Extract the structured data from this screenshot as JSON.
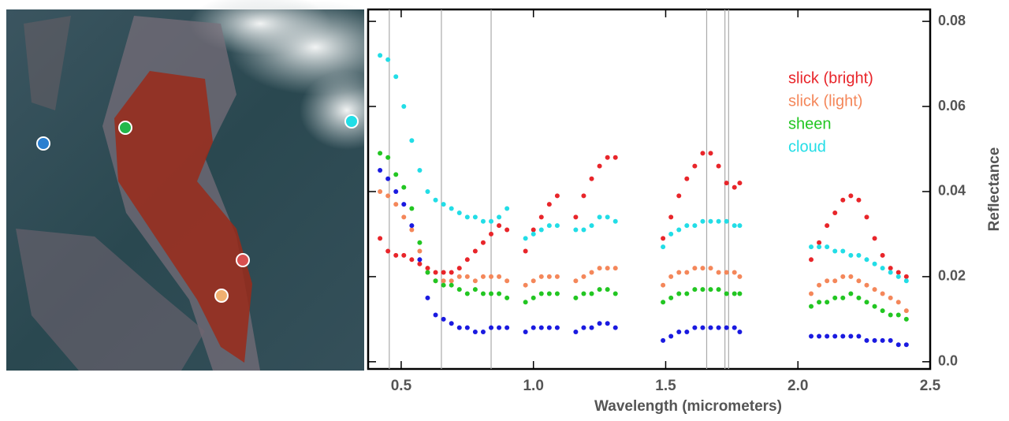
{
  "chart_data": {
    "type": "scatter",
    "xlabel": "Wavelength (micrometers)",
    "ylabel": "Reflectance",
    "xlim": [
      0.375,
      2.5
    ],
    "ylim": [
      -0.0017,
      0.0828
    ],
    "xticks": [
      0.5,
      {
        "value": 1,
        "label": "1.0"
      },
      1.5,
      {
        "value": 2,
        "label": "2.0"
      },
      2.5
    ],
    "yticks": [
      {
        "value": 0,
        "label": "0.0"
      },
      0.02,
      0.04,
      0.06,
      0.08
    ],
    "vlines": [
      0.455,
      0.652,
      0.84,
      1.655,
      1.724,
      1.738
    ],
    "legend": "upper right",
    "x": [
      0.42,
      0.45,
      0.48,
      0.51,
      0.54,
      0.57,
      0.6,
      0.63,
      0.66,
      0.69,
      0.72,
      0.75,
      0.78,
      0.81,
      0.84,
      0.87,
      0.9,
      0.97,
      1.0,
      1.03,
      1.06,
      1.09,
      1.16,
      1.19,
      1.22,
      1.25,
      1.28,
      1.31,
      1.49,
      1.52,
      1.55,
      1.58,
      1.61,
      1.64,
      1.67,
      1.7,
      1.73,
      1.76,
      1.78,
      2.05,
      2.08,
      2.11,
      2.14,
      2.17,
      2.2,
      2.23,
      2.26,
      2.29,
      2.32,
      2.35,
      2.38,
      2.41
    ],
    "series": [
      {
        "name": "slick (bright)",
        "color": "#e8252a",
        "values": [
          0.029,
          0.026,
          0.025,
          0.025,
          0.024,
          0.023,
          0.022,
          0.021,
          0.021,
          0.021,
          0.022,
          0.024,
          0.026,
          0.028,
          0.03,
          0.032,
          0.031,
          0.026,
          0.031,
          0.034,
          0.037,
          0.039,
          0.034,
          0.039,
          0.043,
          0.046,
          0.048,
          0.048,
          0.029,
          0.034,
          0.039,
          0.043,
          0.046,
          0.049,
          0.049,
          0.046,
          0.042,
          0.041,
          0.042,
          0.024,
          0.028,
          0.032,
          0.035,
          0.038,
          0.039,
          0.038,
          0.034,
          0.029,
          0.025,
          0.022,
          0.021,
          0.02
        ]
      },
      {
        "name": "slick (light)",
        "color": "#f4875a",
        "values": [
          0.04,
          0.039,
          0.037,
          0.034,
          0.031,
          0.026,
          0.021,
          0.019,
          0.019,
          0.019,
          0.02,
          0.02,
          0.019,
          0.02,
          0.02,
          0.02,
          0.019,
          0.018,
          0.019,
          0.02,
          0.02,
          0.02,
          0.019,
          0.02,
          0.021,
          0.022,
          0.022,
          0.022,
          0.018,
          0.02,
          0.021,
          0.021,
          0.022,
          0.022,
          0.022,
          0.021,
          0.021,
          0.021,
          0.02,
          0.016,
          0.018,
          0.019,
          0.019,
          0.02,
          0.02,
          0.019,
          0.018,
          0.017,
          0.016,
          0.015,
          0.014,
          0.012
        ]
      },
      {
        "name": "sheen",
        "color": "#22c622",
        "values": [
          0.049,
          0.048,
          0.044,
          0.041,
          0.036,
          0.028,
          0.021,
          0.019,
          0.018,
          0.018,
          0.017,
          0.016,
          0.017,
          0.016,
          0.016,
          0.016,
          0.015,
          0.014,
          0.015,
          0.016,
          0.016,
          0.016,
          0.015,
          0.016,
          0.016,
          0.017,
          0.017,
          0.016,
          0.014,
          0.015,
          0.016,
          0.016,
          0.017,
          0.017,
          0.017,
          0.017,
          0.016,
          0.016,
          0.016,
          0.013,
          0.014,
          0.014,
          0.015,
          0.015,
          0.016,
          0.015,
          0.014,
          0.013,
          0.012,
          0.011,
          0.011,
          0.01
        ]
      },
      {
        "name": "cloud",
        "color": "#22dde6",
        "values": [
          0.072,
          0.071,
          0.067,
          0.06,
          0.052,
          0.045,
          0.04,
          0.038,
          0.037,
          0.036,
          0.035,
          0.034,
          0.034,
          0.033,
          0.033,
          0.034,
          0.036,
          0.029,
          0.03,
          0.031,
          0.032,
          0.032,
          0.031,
          0.031,
          0.032,
          0.034,
          0.034,
          0.033,
          0.027,
          0.03,
          0.031,
          0.032,
          0.032,
          0.033,
          0.033,
          0.033,
          0.033,
          0.032,
          0.032,
          0.027,
          0.027,
          0.027,
          0.026,
          0.026,
          0.025,
          0.025,
          0.024,
          0.023,
          0.022,
          0.021,
          0.02,
          0.019
        ]
      },
      {
        "color": "#1a1ae0",
        "values": [
          0.045,
          0.043,
          0.04,
          0.037,
          0.032,
          0.024,
          0.015,
          0.011,
          0.01,
          0.009,
          0.008,
          0.008,
          0.007,
          0.007,
          0.008,
          0.008,
          0.008,
          0.007,
          0.008,
          0.008,
          0.008,
          0.008,
          0.007,
          0.008,
          0.008,
          0.009,
          0.009,
          0.008,
          0.005,
          0.006,
          0.007,
          0.007,
          0.008,
          0.008,
          0.008,
          0.008,
          0.008,
          0.008,
          0.007,
          0.006,
          0.006,
          0.006,
          0.006,
          0.006,
          0.006,
          0.006,
          0.005,
          0.005,
          0.005,
          0.005,
          0.004,
          0.004
        ]
      }
    ]
  }
}
